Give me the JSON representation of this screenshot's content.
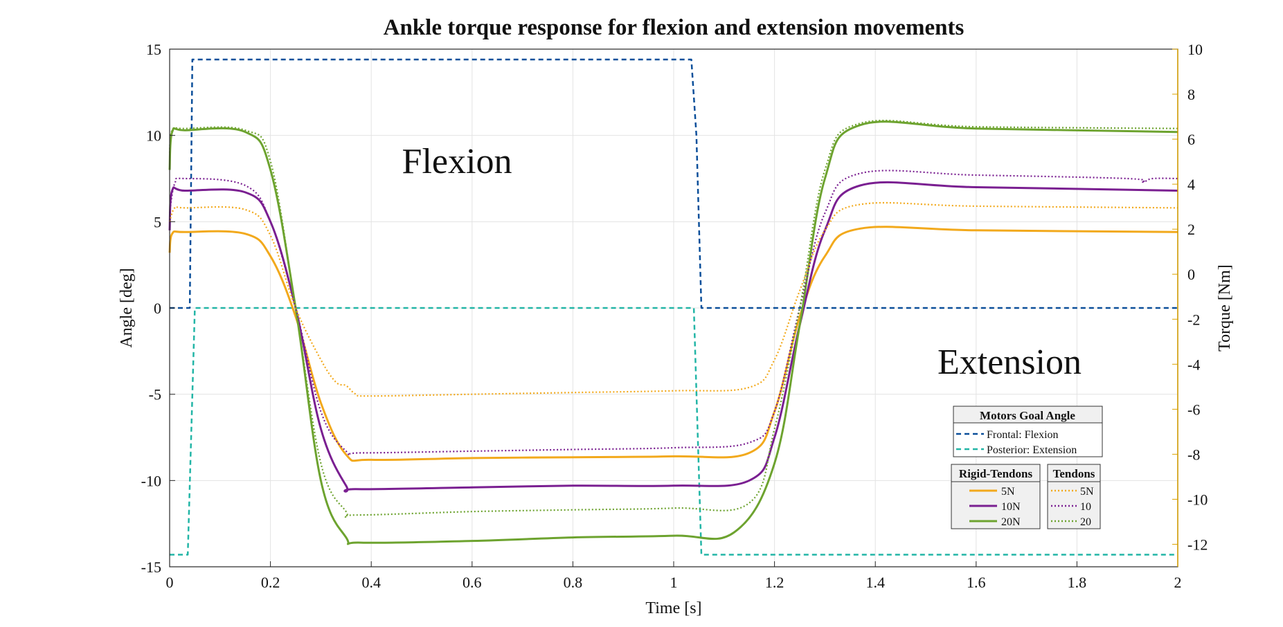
{
  "chart_data": {
    "type": "line",
    "title": "Ankle torque response for flexion and extension movements",
    "xlabel": "Time [s]",
    "ylabel_left": "Angle [deg]",
    "ylabel_right": "Torque [Nm]",
    "xlim": [
      0,
      2
    ],
    "ylim_left": [
      -15,
      15
    ],
    "ylim_right": [
      -13,
      10
    ],
    "x_ticks": [
      "0",
      "0.2",
      "0.4",
      "0.6",
      "0.8",
      "1",
      "1.2",
      "1.4",
      "1.6",
      "1.8",
      "2"
    ],
    "y_left_ticks": [
      "15",
      "10",
      "5",
      "0",
      "-5",
      "-10",
      "-15"
    ],
    "y_right_ticks": [
      "10",
      "8",
      "6",
      "4",
      "2",
      "0",
      "-2",
      "-4",
      "-6",
      "-8",
      "-10",
      "-12"
    ],
    "grid": true,
    "annotations": [
      "Flexion",
      "Extension"
    ],
    "legend_groups": [
      {
        "title": "Motors Goal Angle",
        "entries": [
          "Frontal: Flexion",
          "Posterior: Extension"
        ]
      },
      {
        "title": "Rigid-Tendons",
        "entries": [
          "5N",
          "10N",
          "20N"
        ]
      },
      {
        "title": "Tendons",
        "entries": [
          "5N",
          "10",
          "20"
        ]
      }
    ],
    "colors": {
      "frontal": "#0b4f9a",
      "posterior": "#22b5a6",
      "n5": "#f2a91c",
      "n10": "#7a1f91",
      "n20": "#6da32f",
      "right_axis": "#d9a100"
    },
    "series": [
      {
        "name": "Frontal: Flexion",
        "axis": "left",
        "style": "dashed",
        "color": "#0b4f9a",
        "x": [
          0,
          0.04,
          0.045,
          1.035,
          1.045,
          1.055,
          2
        ],
        "y": [
          0,
          0,
          14.4,
          14.4,
          10,
          0,
          0
        ]
      },
      {
        "name": "Posterior: Extension",
        "axis": "left",
        "style": "dashed",
        "color": "#22b5a6",
        "x": [
          0,
          0.036,
          0.05,
          1.04,
          1.055,
          2
        ],
        "y": [
          -14.3,
          -14.3,
          0,
          0,
          -14.3,
          -14.3
        ]
      },
      {
        "name": "5N",
        "group": "Rigid-Tendons",
        "axis": "left",
        "style": "solid",
        "color": "#f2a91c",
        "x": [
          0,
          0.005,
          0.03,
          0.15,
          0.2,
          0.25,
          0.3,
          0.35,
          0.4,
          0.6,
          0.8,
          1.0,
          1.15,
          1.2,
          1.25,
          1.3,
          1.37,
          1.6,
          2
        ],
        "y": [
          3.2,
          4.3,
          4.4,
          4.3,
          3.0,
          -0.5,
          -5.5,
          -8.5,
          -8.8,
          -8.7,
          -8.65,
          -8.6,
          -8.4,
          -6.0,
          -0.5,
          3.0,
          4.6,
          4.5,
          4.4
        ]
      },
      {
        "name": "10N",
        "group": "Rigid-Tendons",
        "axis": "left",
        "style": "solid",
        "color": "#7a1f91",
        "x": [
          0,
          0.005,
          0.03,
          0.15,
          0.2,
          0.25,
          0.3,
          0.35,
          0.37,
          0.6,
          0.8,
          1.0,
          1.15,
          1.2,
          1.25,
          1.3,
          1.37,
          1.6,
          2
        ],
        "y": [
          4.5,
          6.8,
          6.8,
          6.7,
          5.0,
          0.0,
          -7.0,
          -10.3,
          -10.5,
          -10.4,
          -10.3,
          -10.3,
          -10.0,
          -7.5,
          -1.0,
          4.5,
          7.1,
          7.0,
          6.8
        ]
      },
      {
        "name": "20N",
        "group": "Rigid-Tendons",
        "axis": "left",
        "style": "solid",
        "color": "#6da32f",
        "x": [
          0,
          0.005,
          0.03,
          0.15,
          0.2,
          0.25,
          0.3,
          0.35,
          0.38,
          0.6,
          0.8,
          1.0,
          1.12,
          1.2,
          1.25,
          1.3,
          1.37,
          1.6,
          2
        ],
        "y": [
          8.0,
          10.2,
          10.3,
          10.2,
          8.0,
          0.0,
          -10.0,
          -13.3,
          -13.6,
          -13.5,
          -13.3,
          -13.2,
          -13.0,
          -9.0,
          -1.0,
          7.5,
          10.6,
          10.4,
          10.2
        ]
      },
      {
        "name": "5N",
        "group": "Tendons",
        "axis": "left",
        "style": "dotted",
        "color": "#f2a91c",
        "x": [
          0,
          0.01,
          0.03,
          0.15,
          0.2,
          0.25,
          0.3,
          0.33,
          0.35,
          0.37,
          0.4,
          0.6,
          0.8,
          1.0,
          1.15,
          1.2,
          1.25,
          1.3,
          1.37,
          1.6,
          2
        ],
        "y": [
          5.0,
          5.8,
          5.8,
          5.7,
          4.2,
          0.0,
          -3.0,
          -4.3,
          -4.5,
          -5.0,
          -5.1,
          -5.0,
          -4.9,
          -4.8,
          -4.6,
          -3.0,
          1.0,
          4.5,
          6.0,
          5.9,
          5.8
        ]
      },
      {
        "name": "10",
        "group": "Tendons",
        "axis": "left",
        "style": "dotted",
        "color": "#7a1f91",
        "x": [
          0,
          0.01,
          0.03,
          0.15,
          0.2,
          0.25,
          0.3,
          0.35,
          0.38,
          0.6,
          0.8,
          1.0,
          1.15,
          1.2,
          1.25,
          1.3,
          1.37,
          1.6,
          1.9,
          1.93,
          1.95,
          2
        ],
        "y": [
          5.5,
          7.2,
          7.5,
          7.1,
          5.0,
          0.0,
          -6.0,
          -8.3,
          -8.4,
          -8.3,
          -8.2,
          -8.1,
          -7.8,
          -6.0,
          0.0,
          5.5,
          7.8,
          7.7,
          7.5,
          7.3,
          7.5,
          7.5
        ]
      },
      {
        "name": "20",
        "group": "Tendons",
        "axis": "left",
        "style": "dotted",
        "color": "#6da32f",
        "x": [
          0,
          0.005,
          0.03,
          0.15,
          0.2,
          0.25,
          0.3,
          0.35,
          0.37,
          0.6,
          0.8,
          1.0,
          1.15,
          1.2,
          1.25,
          1.3,
          1.37,
          1.6,
          2
        ],
        "y": [
          9.0,
          10.3,
          10.4,
          10.3,
          8.5,
          0.0,
          -9.0,
          -11.8,
          -12.0,
          -11.8,
          -11.7,
          -11.6,
          -11.3,
          -7.0,
          0.0,
          8.0,
          10.7,
          10.5,
          10.4
        ]
      }
    ]
  }
}
